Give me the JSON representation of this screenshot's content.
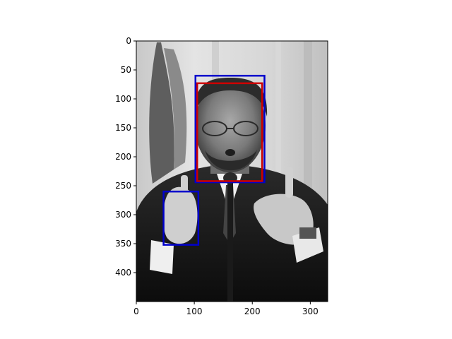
{
  "colors": {
    "background": "#ffffff",
    "axis": "#000000",
    "box_blue": "#0000cc",
    "box_red": "#cc0000"
  },
  "axes": {
    "x_ticks": [
      0,
      100,
      200,
      300
    ],
    "y_ticks": [
      0,
      50,
      100,
      150,
      200,
      250,
      300,
      350,
      400
    ],
    "xlim": [
      0,
      330
    ],
    "ylim_inverted": [
      450,
      0
    ]
  },
  "image": {
    "description_type": "grayscale photograph",
    "width_data": 330,
    "height_data": 450
  },
  "boxes": [
    {
      "name": "face-box-blue",
      "color": "#0000cc",
      "x0": 102,
      "y0": 60,
      "x1": 221,
      "y1": 244
    },
    {
      "name": "face-box-red",
      "color": "#cc0000",
      "x0": 105,
      "y0": 73,
      "x1": 217,
      "y1": 242
    },
    {
      "name": "hand-box-blue",
      "color": "#0000cc",
      "x0": 47,
      "y0": 260,
      "x1": 107,
      "y1": 352
    }
  ]
}
